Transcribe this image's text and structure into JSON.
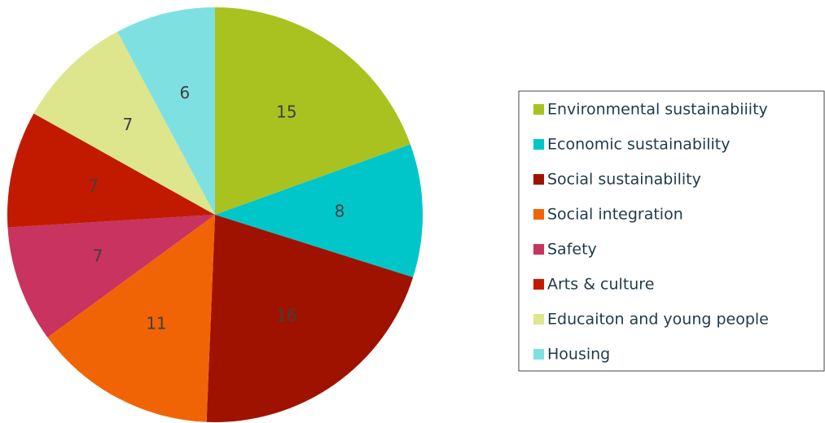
{
  "chart_data": {
    "type": "pie",
    "categories": [
      "Environmental sustainabiiity",
      "Economic sustainability",
      "Social sustainability",
      "Social integration",
      "Safety",
      "Arts & culture",
      "Educaiton and young people",
      "Housing"
    ],
    "values": [
      15,
      8,
      16,
      11,
      7,
      7,
      7,
      6
    ],
    "colors": [
      "#a9c21f",
      "#00c6c9",
      "#a01200",
      "#f06405",
      "#c8335f",
      "#c21a00",
      "#dde68d",
      "#7fe0e2"
    ],
    "legend": "right"
  }
}
